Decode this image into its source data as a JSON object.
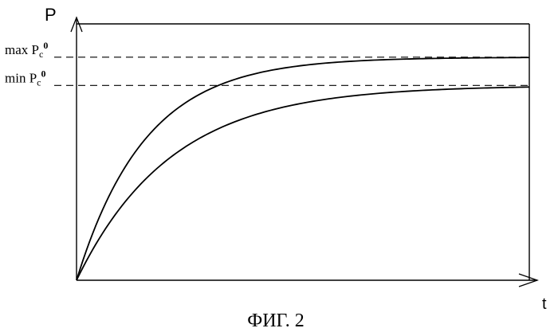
{
  "figure": {
    "y_axis_label": "P",
    "x_axis_label": "t",
    "caption": "ФИГ. 2"
  },
  "reference_lines": [
    {
      "id": "max",
      "prefix": "max P",
      "subscript": "c",
      "superscript": "0",
      "level": 0.87
    },
    {
      "id": "min",
      "prefix": "min P",
      "subscript": "c",
      "superscript": "0",
      "level": 0.76
    }
  ],
  "curves": [
    {
      "id": "upper",
      "asymptote": "max",
      "rate": 2.2
    },
    {
      "id": "lower",
      "asymptote": "min",
      "rate": 1.6
    }
  ],
  "colors": {
    "ink": "#000000",
    "background": "#ffffff"
  }
}
